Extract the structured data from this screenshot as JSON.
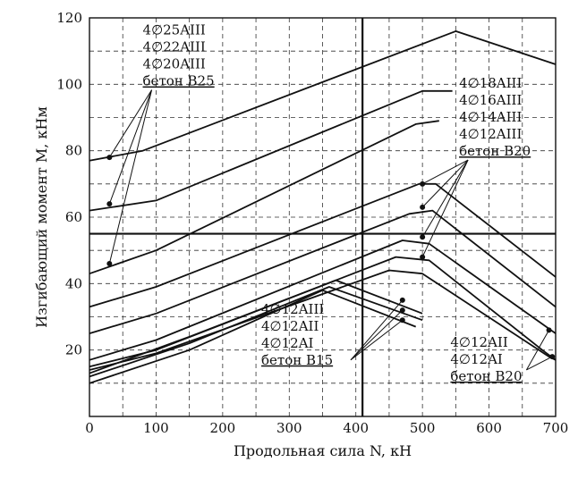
{
  "chart_data": {
    "type": "line",
    "xlabel": "Продольная сила N, кН",
    "ylabel": "Изгибающий момент M, кНм",
    "xlim": [
      0,
      700
    ],
    "ylim": [
      0,
      120
    ],
    "x_ticks": [
      "0",
      "100",
      "200",
      "300",
      "400",
      "500",
      "600",
      "700"
    ],
    "y_ticks": [
      "20",
      "40",
      "60",
      "80",
      "100",
      "120"
    ],
    "grid": "dashed",
    "reference_lines": {
      "x": 410,
      "y": 55
    },
    "series": [
      {
        "points": [
          [
            0,
            77
          ],
          [
            80,
            80
          ],
          [
            550,
            116
          ],
          [
            700,
            106
          ]
        ]
      },
      {
        "points": [
          [
            0,
            62
          ],
          [
            100,
            65
          ],
          [
            500,
            98
          ],
          [
            545,
            98
          ]
        ]
      },
      {
        "points": [
          [
            0,
            43
          ],
          [
            100,
            50
          ],
          [
            490,
            88
          ],
          [
            525,
            89
          ]
        ]
      },
      {
        "points": [
          [
            0,
            33
          ],
          [
            100,
            39
          ],
          [
            495,
            70
          ],
          [
            520,
            70
          ],
          [
            700,
            42
          ]
        ]
      },
      {
        "points": [
          [
            0,
            25
          ],
          [
            100,
            31
          ],
          [
            480,
            61
          ],
          [
            515,
            62
          ],
          [
            700,
            33
          ]
        ]
      },
      {
        "points": [
          [
            0,
            17
          ],
          [
            100,
            23
          ],
          [
            470,
            53
          ],
          [
            510,
            52
          ],
          [
            700,
            25
          ]
        ]
      },
      {
        "points": [
          [
            0,
            15
          ],
          [
            100,
            20
          ],
          [
            460,
            48
          ],
          [
            510,
            47
          ],
          [
            680,
            20
          ],
          [
            700,
            17
          ]
        ]
      },
      {
        "points": [
          [
            0,
            14
          ],
          [
            100,
            19
          ],
          [
            450,
            44
          ],
          [
            500,
            43
          ],
          [
            690,
            18
          ],
          [
            700,
            17
          ]
        ]
      },
      {
        "points": [
          [
            0,
            13
          ],
          [
            150,
            24
          ],
          [
            370,
            41
          ],
          [
            500,
            31
          ]
        ]
      },
      {
        "points": [
          [
            0,
            12
          ],
          [
            150,
            22
          ],
          [
            360,
            39
          ],
          [
            500,
            29
          ]
        ]
      },
      {
        "points": [
          [
            0,
            10
          ],
          [
            150,
            20
          ],
          [
            350,
            38
          ],
          [
            490,
            27
          ]
        ]
      }
    ],
    "markers": [
      [
        30,
        78
      ],
      [
        30,
        64
      ],
      [
        30,
        46
      ],
      [
        500,
        70
      ],
      [
        500,
        63
      ],
      [
        500,
        54
      ],
      [
        500,
        48
      ],
      [
        470,
        35
      ],
      [
        470,
        32
      ],
      [
        470,
        29
      ],
      [
        690,
        26
      ],
      [
        695,
        18
      ]
    ],
    "annotations": [
      {
        "lines": [
          "4∅25AIII",
          "4∅22AIII",
          "4∅20AIII",
          "бетон B25"
        ],
        "x": 80,
        "y": 115,
        "targets": [
          [
            30,
            78
          ],
          [
            30,
            64
          ],
          [
            30,
            46
          ]
        ]
      },
      {
        "lines": [
          "4∅18AIII",
          "4∅16AIII",
          "4∅14AIII",
          "4∅12AIII",
          "бетон B20"
        ],
        "x": 555,
        "y": 99,
        "targets": [
          [
            500,
            70
          ],
          [
            500,
            63
          ],
          [
            500,
            54
          ],
          [
            500,
            48
          ]
        ]
      },
      {
        "lines": [
          "4∅12AIII",
          "4∅12AII",
          "4∅12AI",
          "бетон B15"
        ],
        "x": 258,
        "y": 31,
        "targets": [
          [
            470,
            35
          ],
          [
            470,
            32
          ],
          [
            470,
            29
          ]
        ]
      },
      {
        "lines": [
          "4∅12AII",
          "4∅12AI",
          "бетон B20"
        ],
        "x": 542,
        "y": 21,
        "targets": [
          [
            690,
            26
          ],
          [
            695,
            18
          ]
        ]
      }
    ]
  }
}
